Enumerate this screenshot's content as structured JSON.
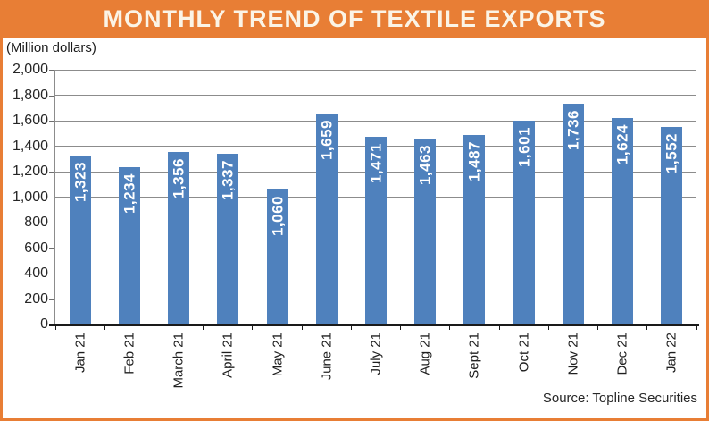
{
  "header": {
    "title": "MONTHLY TREND OF TEXTILE EXPORTS"
  },
  "units_label": "(Million dollars)",
  "source_label": "Source: Topline Securities",
  "colors": {
    "accent_orange": "#E87E35",
    "title_text": "#FBF4E6",
    "bar_blue": "#4F81BD",
    "gridline_gray": "#8C8C8C",
    "axis_black": "#1A1A1A",
    "value_label_white": "#FFFFFF"
  },
  "chart_data": {
    "type": "bar",
    "title": "MONTHLY TREND OF TEXTILE EXPORTS",
    "xlabel": "",
    "ylabel": "(Million dollars)",
    "categories": [
      "Jan 21",
      "Feb 21",
      "March 21",
      "April 21",
      "May 21",
      "June 21",
      "July 21",
      "Aug 21",
      "Sept 21",
      "Oct 21",
      "Nov 21",
      "Dec 21",
      "Jan 22"
    ],
    "values": [
      1323,
      1234,
      1356,
      1337,
      1060,
      1659,
      1471,
      1463,
      1487,
      1601,
      1736,
      1624,
      1552
    ],
    "value_labels": [
      "1,323",
      "1,234",
      "1,356",
      "1,337",
      "1,060",
      "1,659",
      "1,471",
      "1,463",
      "1,487",
      "1,601",
      "1,736",
      "1,624",
      "1,552"
    ],
    "ylim": [
      0,
      2000
    ],
    "ytick_interval": 200,
    "ytick_labels": [
      "0",
      "200",
      "400",
      "600",
      "800",
      "1,000",
      "1,200",
      "1,400",
      "1,600",
      "1,800",
      "2,000"
    ],
    "grid": true,
    "legend": false,
    "bar_color": "#4F81BD",
    "value_label_rotation": -90,
    "xtick_label_rotation": -90,
    "source": "Source: Topline Securities"
  }
}
